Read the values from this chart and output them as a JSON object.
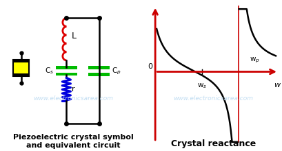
{
  "bg_color": "#ffffff",
  "watermark_text": "www.electronicsarea.com",
  "watermark_color": "#b8d8f0",
  "watermark_alpha": 0.85,
  "left_title": "Piezoelectric crystal symbol\nand equivalent circuit",
  "right_title": "Crystal reactance",
  "title_fontsize": 8,
  "graph_axis_color": "#cc0000",
  "curve_color": "#000000",
  "ws": 0.42,
  "wp": 0.68,
  "coil_color": "#dd0000",
  "resistor_color": "#0000dd",
  "cap_color": "#00bb00",
  "wire_color": "#000000"
}
